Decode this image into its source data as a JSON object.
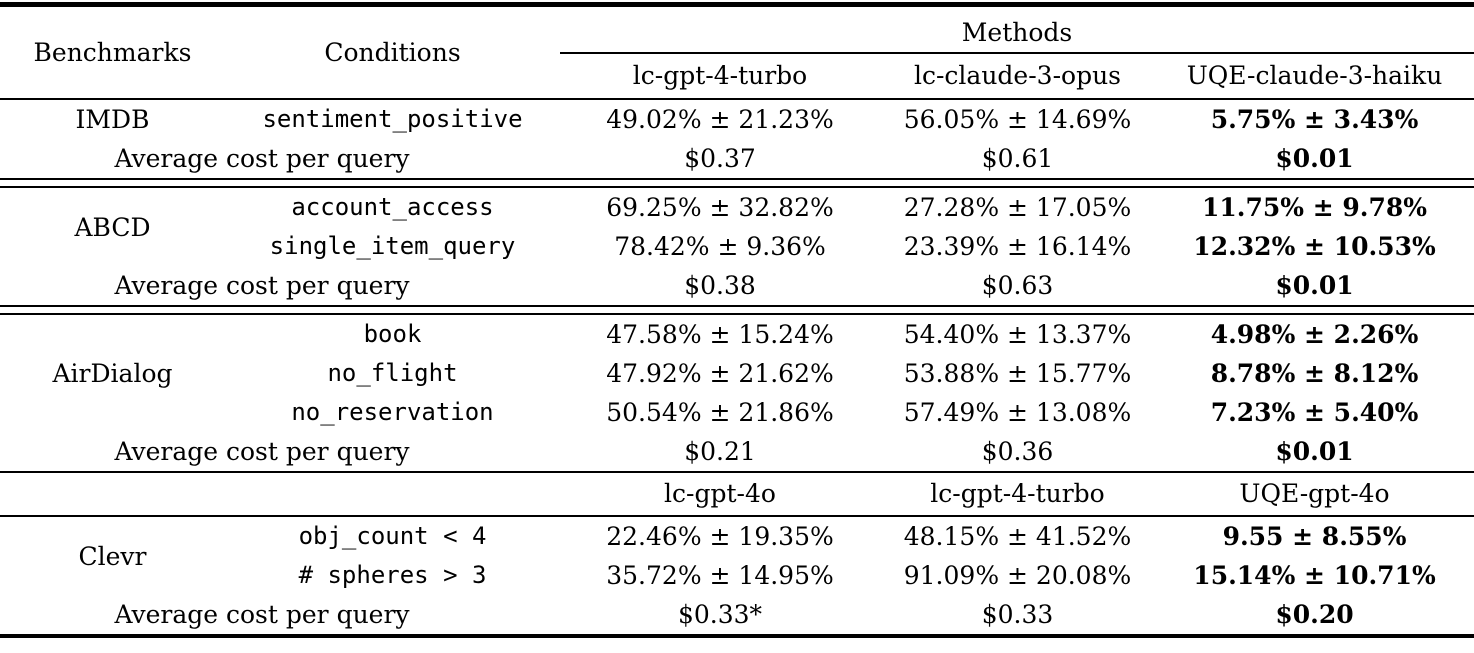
{
  "page": {
    "background": "#ffffff",
    "text_color": "#000000"
  },
  "table": {
    "header": {
      "benchmarks": "Benchmarks",
      "conditions": "Conditions",
      "methods": "Methods",
      "method_columns": [
        "lc-gpt-4-turbo",
        "lc-claude-3-opus",
        "UQE-claude-3-haiku"
      ]
    },
    "sections": [
      {
        "benchmark": "IMDB",
        "rows": [
          {
            "condition": "sentiment_positive",
            "values": [
              "49.02% ± 21.23%",
              "56.05% ± 14.69%",
              "5.75% ± 3.43%"
            ]
          }
        ],
        "cost": {
          "label": "Average cost per query",
          "values": [
            "$0.37",
            "$0.61",
            "$0.01"
          ]
        }
      },
      {
        "benchmark": "ABCD",
        "rows": [
          {
            "condition": "account_access",
            "values": [
              "69.25% ± 32.82%",
              "27.28% ± 17.05%",
              "11.75% ± 9.78%"
            ]
          },
          {
            "condition": "single_item_query",
            "values": [
              "78.42% ± 9.36%",
              "23.39% ± 16.14%",
              "12.32% ± 10.53%"
            ]
          }
        ],
        "cost": {
          "label": "Average cost per query",
          "values": [
            "$0.38",
            "$0.63",
            "$0.01"
          ]
        }
      },
      {
        "benchmark": "AirDialog",
        "rows": [
          {
            "condition": "book",
            "values": [
              "47.58% ± 15.24%",
              "54.40% ± 13.37%",
              "4.98% ± 2.26%"
            ]
          },
          {
            "condition": "no_flight",
            "values": [
              "47.92% ± 21.62%",
              "53.88% ± 15.77%",
              "8.78% ± 8.12%"
            ]
          },
          {
            "condition": "no_reservation",
            "values": [
              "50.54% ± 21.86%",
              "57.49% ± 13.08%",
              "7.23% ± 5.40%"
            ]
          }
        ],
        "cost": {
          "label": "Average cost per query",
          "values": [
            "$0.21",
            "$0.36",
            "$0.01"
          ]
        }
      },
      {
        "benchmark": "Clevr",
        "subheader": [
          "lc-gpt-4o",
          "lc-gpt-4-turbo",
          "UQE-gpt-4o"
        ],
        "rows": [
          {
            "condition": "obj_count < 4",
            "values": [
              "22.46% ± 19.35%",
              "48.15% ± 41.52%",
              "9.55 ± 8.55%"
            ]
          },
          {
            "condition": "# spheres > 3",
            "values": [
              "35.72% ± 14.95%",
              "91.09% ± 20.08%",
              "15.14% ± 10.71%"
            ]
          }
        ],
        "cost": {
          "label": "Average cost per query",
          "values": [
            "$0.33*",
            "$0.33",
            "$0.20"
          ]
        }
      }
    ]
  }
}
